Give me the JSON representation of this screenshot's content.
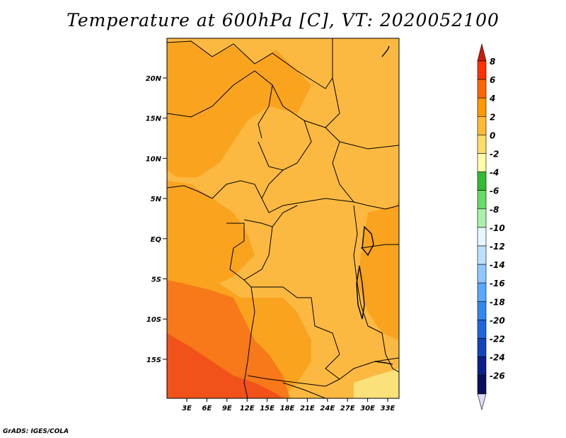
{
  "map": {
    "title": "Temperature at 600hPa [C], VT: 2020052100",
    "credit": "GrADS: IGES/COLA",
    "lat_labels": [
      "20N",
      "15N",
      "10N",
      "5N",
      "EQ",
      "5S",
      "10S",
      "15S"
    ],
    "lon_labels": [
      "3E",
      "6E",
      "9E",
      "12E",
      "15E",
      "18E",
      "21E",
      "24E",
      "27E",
      "30E",
      "33E"
    ],
    "colorbar": {
      "labels": [
        "8",
        "6",
        "4",
        "2",
        "0",
        "-2",
        "-4",
        "-6",
        "-8",
        "-10",
        "-12",
        "-14",
        "-16",
        "-18",
        "-20",
        "-22",
        "-24",
        "-26"
      ],
      "colors": [
        "#a50f0f",
        "#ff3300",
        "#ff6600",
        "#ff9900",
        "#ffbb33",
        "#ffdd66",
        "#ffffaa",
        "#33bb33",
        "#66dd66",
        "#aaf0aa",
        "#e6f7ff",
        "#bde0ff",
        "#8ec8ff",
        "#5aa8ff",
        "#3388ee",
        "#1f66dd",
        "#1144bb",
        "#0a1f8a",
        "#08105a",
        "#e0e0f0"
      ],
      "top_arrow_color": "#cc1b0c",
      "bottom_arrow_color": "#dcdcf5"
    },
    "field_colors": {
      "band_0_2": "#fbb941",
      "band_2_4": "#faa31e",
      "band_4_6": "#f7791a",
      "band_6_8": "#f0521a",
      "band_m2_0": "#fbe17a"
    }
  }
}
